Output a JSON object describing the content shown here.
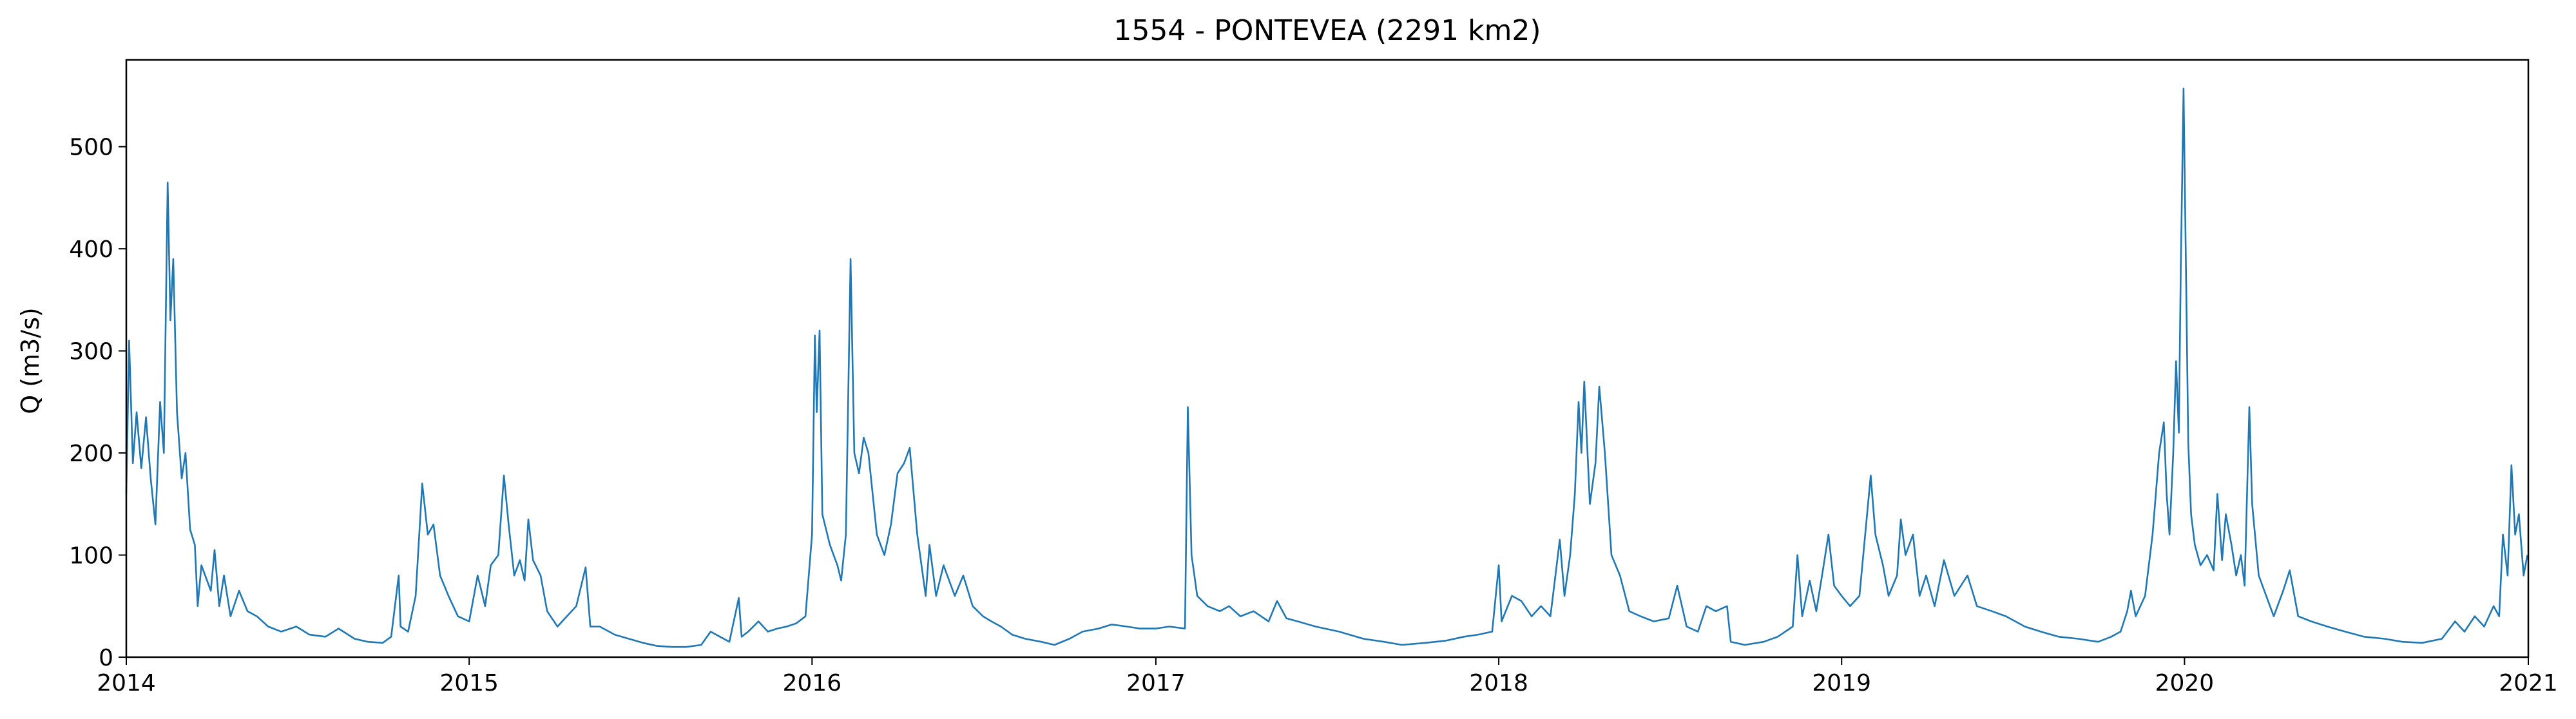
{
  "chart_data": {
    "type": "line",
    "title": "1554 - PONTEVEA (2291 km2)",
    "xlabel": "",
    "ylabel": "Q (m3/s)",
    "xlim": [
      "2014-01-01",
      "2021-01-01"
    ],
    "ylim": [
      0,
      585
    ],
    "grid": false,
    "legend": "none",
    "x_ticks": [
      {
        "label": "2014",
        "date": "2014-01-01"
      },
      {
        "label": "2015",
        "date": "2015-01-01"
      },
      {
        "label": "2016",
        "date": "2016-01-01"
      },
      {
        "label": "2017",
        "date": "2017-01-01"
      },
      {
        "label": "2018",
        "date": "2018-01-01"
      },
      {
        "label": "2019",
        "date": "2019-01-01"
      },
      {
        "label": "2020",
        "date": "2020-01-01"
      },
      {
        "label": "2021",
        "date": "2021-01-01"
      }
    ],
    "y_ticks": [
      {
        "label": "0",
        "value": 0
      },
      {
        "label": "100",
        "value": 100
      },
      {
        "label": "200",
        "value": 200
      },
      {
        "label": "300",
        "value": 300
      },
      {
        "label": "400",
        "value": 400
      },
      {
        "label": "500",
        "value": 500
      }
    ],
    "series": [
      {
        "name": "",
        "color": "#1f77b4",
        "points": [
          [
            "2014-01-01",
            160
          ],
          [
            "2014-01-04",
            310
          ],
          [
            "2014-01-08",
            190
          ],
          [
            "2014-01-12",
            240
          ],
          [
            "2014-01-17",
            185
          ],
          [
            "2014-01-22",
            235
          ],
          [
            "2014-01-27",
            175
          ],
          [
            "2014-02-01",
            130
          ],
          [
            "2014-02-06",
            250
          ],
          [
            "2014-02-10",
            200
          ],
          [
            "2014-02-14",
            465
          ],
          [
            "2014-02-17",
            330
          ],
          [
            "2014-02-20",
            390
          ],
          [
            "2014-02-24",
            240
          ],
          [
            "2014-03-01",
            175
          ],
          [
            "2014-03-05",
            200
          ],
          [
            "2014-03-10",
            125
          ],
          [
            "2014-03-15",
            110
          ],
          [
            "2014-03-18",
            50
          ],
          [
            "2014-03-22",
            90
          ],
          [
            "2014-04-01",
            65
          ],
          [
            "2014-04-05",
            105
          ],
          [
            "2014-04-10",
            50
          ],
          [
            "2014-04-15",
            80
          ],
          [
            "2014-04-22",
            40
          ],
          [
            "2014-05-01",
            65
          ],
          [
            "2014-05-10",
            45
          ],
          [
            "2014-05-20",
            40
          ],
          [
            "2014-06-01",
            30
          ],
          [
            "2014-06-15",
            25
          ],
          [
            "2014-07-01",
            30
          ],
          [
            "2014-07-15",
            22
          ],
          [
            "2014-08-01",
            20
          ],
          [
            "2014-08-15",
            28
          ],
          [
            "2014-09-01",
            18
          ],
          [
            "2014-09-15",
            15
          ],
          [
            "2014-10-01",
            14
          ],
          [
            "2014-10-10",
            20
          ],
          [
            "2014-10-18",
            80
          ],
          [
            "2014-10-20",
            30
          ],
          [
            "2014-10-28",
            25
          ],
          [
            "2014-11-05",
            60
          ],
          [
            "2014-11-12",
            170
          ],
          [
            "2014-11-18",
            120
          ],
          [
            "2014-11-24",
            130
          ],
          [
            "2014-12-01",
            80
          ],
          [
            "2014-12-10",
            60
          ],
          [
            "2014-12-20",
            40
          ],
          [
            "2015-01-01",
            35
          ],
          [
            "2015-01-10",
            80
          ],
          [
            "2015-01-18",
            50
          ],
          [
            "2015-01-24",
            90
          ],
          [
            "2015-02-01",
            100
          ],
          [
            "2015-02-07",
            178
          ],
          [
            "2015-02-12",
            130
          ],
          [
            "2015-02-18",
            80
          ],
          [
            "2015-02-24",
            95
          ],
          [
            "2015-03-01",
            75
          ],
          [
            "2015-03-05",
            135
          ],
          [
            "2015-03-10",
            95
          ],
          [
            "2015-03-18",
            80
          ],
          [
            "2015-03-25",
            45
          ],
          [
            "2015-04-05",
            30
          ],
          [
            "2015-04-15",
            40
          ],
          [
            "2015-04-25",
            50
          ],
          [
            "2015-05-05",
            88
          ],
          [
            "2015-05-10",
            30
          ],
          [
            "2015-05-20",
            30
          ],
          [
            "2015-06-05",
            22
          ],
          [
            "2015-06-20",
            18
          ],
          [
            "2015-07-05",
            14
          ],
          [
            "2015-07-20",
            11
          ],
          [
            "2015-08-05",
            10
          ],
          [
            "2015-08-20",
            10
          ],
          [
            "2015-09-05",
            12
          ],
          [
            "2015-09-15",
            25
          ],
          [
            "2015-09-25",
            20
          ],
          [
            "2015-10-05",
            15
          ],
          [
            "2015-10-15",
            58
          ],
          [
            "2015-10-18",
            20
          ],
          [
            "2015-10-25",
            25
          ],
          [
            "2015-11-05",
            35
          ],
          [
            "2015-11-15",
            25
          ],
          [
            "2015-11-25",
            28
          ],
          [
            "2015-12-05",
            30
          ],
          [
            "2015-12-15",
            33
          ],
          [
            "2015-12-25",
            40
          ],
          [
            "2016-01-01",
            120
          ],
          [
            "2016-01-04",
            315
          ],
          [
            "2016-01-06",
            240
          ],
          [
            "2016-01-09",
            320
          ],
          [
            "2016-01-12",
            140
          ],
          [
            "2016-01-20",
            110
          ],
          [
            "2016-01-28",
            90
          ],
          [
            "2016-02-01",
            75
          ],
          [
            "2016-02-06",
            120
          ],
          [
            "2016-02-11",
            390
          ],
          [
            "2016-02-15",
            200
          ],
          [
            "2016-02-20",
            180
          ],
          [
            "2016-02-25",
            215
          ],
          [
            "2016-03-01",
            200
          ],
          [
            "2016-03-10",
            120
          ],
          [
            "2016-03-18",
            100
          ],
          [
            "2016-03-25",
            130
          ],
          [
            "2016-04-01",
            180
          ],
          [
            "2016-04-08",
            190
          ],
          [
            "2016-04-14",
            205
          ],
          [
            "2016-04-22",
            120
          ],
          [
            "2016-05-01",
            60
          ],
          [
            "2016-05-05",
            110
          ],
          [
            "2016-05-12",
            60
          ],
          [
            "2016-05-20",
            90
          ],
          [
            "2016-06-01",
            60
          ],
          [
            "2016-06-10",
            80
          ],
          [
            "2016-06-20",
            50
          ],
          [
            "2016-07-01",
            40
          ],
          [
            "2016-07-10",
            35
          ],
          [
            "2016-07-20",
            30
          ],
          [
            "2016-08-01",
            22
          ],
          [
            "2016-08-15",
            18
          ],
          [
            "2016-09-01",
            15
          ],
          [
            "2016-09-15",
            12
          ],
          [
            "2016-10-01",
            18
          ],
          [
            "2016-10-15",
            25
          ],
          [
            "2016-11-01",
            28
          ],
          [
            "2016-11-15",
            32
          ],
          [
            "2016-12-01",
            30
          ],
          [
            "2016-12-15",
            28
          ],
          [
            "2017-01-01",
            28
          ],
          [
            "2017-01-15",
            30
          ],
          [
            "2017-02-01",
            28
          ],
          [
            "2017-02-04",
            245
          ],
          [
            "2017-02-08",
            100
          ],
          [
            "2017-02-14",
            60
          ],
          [
            "2017-02-25",
            50
          ],
          [
            "2017-03-10",
            45
          ],
          [
            "2017-03-20",
            50
          ],
          [
            "2017-04-01",
            40
          ],
          [
            "2017-04-15",
            45
          ],
          [
            "2017-05-01",
            35
          ],
          [
            "2017-05-10",
            55
          ],
          [
            "2017-05-20",
            38
          ],
          [
            "2017-06-01",
            35
          ],
          [
            "2017-06-20",
            30
          ],
          [
            "2017-07-15",
            25
          ],
          [
            "2017-08-10",
            18
          ],
          [
            "2017-09-01",
            15
          ],
          [
            "2017-09-20",
            12
          ],
          [
            "2017-10-15",
            14
          ],
          [
            "2017-11-05",
            16
          ],
          [
            "2017-11-25",
            20
          ],
          [
            "2017-12-10",
            22
          ],
          [
            "2017-12-25",
            25
          ],
          [
            "2018-01-01",
            90
          ],
          [
            "2018-01-04",
            35
          ],
          [
            "2018-01-15",
            60
          ],
          [
            "2018-01-25",
            55
          ],
          [
            "2018-02-05",
            40
          ],
          [
            "2018-02-15",
            50
          ],
          [
            "2018-02-25",
            40
          ],
          [
            "2018-03-01",
            70
          ],
          [
            "2018-03-07",
            115
          ],
          [
            "2018-03-12",
            60
          ],
          [
            "2018-03-18",
            100
          ],
          [
            "2018-03-23",
            160
          ],
          [
            "2018-03-27",
            250
          ],
          [
            "2018-03-30",
            200
          ],
          [
            "2018-04-02",
            270
          ],
          [
            "2018-04-08",
            150
          ],
          [
            "2018-04-14",
            190
          ],
          [
            "2018-04-18",
            265
          ],
          [
            "2018-04-24",
            200
          ],
          [
            "2018-05-01",
            100
          ],
          [
            "2018-05-10",
            80
          ],
          [
            "2018-05-20",
            45
          ],
          [
            "2018-06-01",
            40
          ],
          [
            "2018-06-15",
            35
          ],
          [
            "2018-07-01",
            38
          ],
          [
            "2018-07-10",
            70
          ],
          [
            "2018-07-20",
            30
          ],
          [
            "2018-08-01",
            25
          ],
          [
            "2018-08-10",
            50
          ],
          [
            "2018-08-20",
            45
          ],
          [
            "2018-09-01",
            50
          ],
          [
            "2018-09-05",
            15
          ],
          [
            "2018-09-20",
            12
          ],
          [
            "2018-10-10",
            15
          ],
          [
            "2018-10-25",
            20
          ],
          [
            "2018-11-10",
            30
          ],
          [
            "2018-11-15",
            100
          ],
          [
            "2018-11-20",
            40
          ],
          [
            "2018-11-28",
            75
          ],
          [
            "2018-12-05",
            45
          ],
          [
            "2018-12-12",
            85
          ],
          [
            "2018-12-18",
            120
          ],
          [
            "2018-12-24",
            70
          ],
          [
            "2019-01-01",
            60
          ],
          [
            "2019-01-10",
            50
          ],
          [
            "2019-01-20",
            60
          ],
          [
            "2019-02-01",
            178
          ],
          [
            "2019-02-06",
            120
          ],
          [
            "2019-02-14",
            90
          ],
          [
            "2019-02-20",
            60
          ],
          [
            "2019-03-01",
            80
          ],
          [
            "2019-03-05",
            135
          ],
          [
            "2019-03-10",
            100
          ],
          [
            "2019-03-18",
            120
          ],
          [
            "2019-03-25",
            60
          ],
          [
            "2019-04-01",
            80
          ],
          [
            "2019-04-10",
            50
          ],
          [
            "2019-04-20",
            95
          ],
          [
            "2019-05-01",
            60
          ],
          [
            "2019-05-15",
            80
          ],
          [
            "2019-05-25",
            50
          ],
          [
            "2019-06-10",
            45
          ],
          [
            "2019-06-25",
            40
          ],
          [
            "2019-07-15",
            30
          ],
          [
            "2019-08-01",
            25
          ],
          [
            "2019-08-20",
            20
          ],
          [
            "2019-09-10",
            18
          ],
          [
            "2019-10-01",
            15
          ],
          [
            "2019-10-15",
            20
          ],
          [
            "2019-10-25",
            25
          ],
          [
            "2019-11-01",
            45
          ],
          [
            "2019-11-05",
            65
          ],
          [
            "2019-11-10",
            40
          ],
          [
            "2019-11-20",
            60
          ],
          [
            "2019-11-28",
            120
          ],
          [
            "2019-12-05",
            200
          ],
          [
            "2019-12-10",
            230
          ],
          [
            "2019-12-13",
            160
          ],
          [
            "2019-12-16",
            120
          ],
          [
            "2019-12-20",
            200
          ],
          [
            "2019-12-23",
            290
          ],
          [
            "2019-12-26",
            220
          ],
          [
            "2019-12-28",
            380
          ],
          [
            "2019-12-31",
            557
          ],
          [
            "2020-01-03",
            350
          ],
          [
            "2020-01-05",
            210
          ],
          [
            "2020-01-08",
            140
          ],
          [
            "2020-01-12",
            110
          ],
          [
            "2020-01-18",
            90
          ],
          [
            "2020-01-25",
            100
          ],
          [
            "2020-02-01",
            85
          ],
          [
            "2020-02-05",
            160
          ],
          [
            "2020-02-10",
            95
          ],
          [
            "2020-02-14",
            140
          ],
          [
            "2020-02-20",
            110
          ],
          [
            "2020-02-25",
            80
          ],
          [
            "2020-03-01",
            100
          ],
          [
            "2020-03-05",
            70
          ],
          [
            "2020-03-10",
            245
          ],
          [
            "2020-03-13",
            150
          ],
          [
            "2020-03-20",
            80
          ],
          [
            "2020-03-28",
            60
          ],
          [
            "2020-04-05",
            40
          ],
          [
            "2020-04-15",
            65
          ],
          [
            "2020-04-22",
            85
          ],
          [
            "2020-05-01",
            40
          ],
          [
            "2020-05-15",
            35
          ],
          [
            "2020-06-01",
            30
          ],
          [
            "2020-06-20",
            25
          ],
          [
            "2020-07-10",
            20
          ],
          [
            "2020-08-01",
            18
          ],
          [
            "2020-08-20",
            15
          ],
          [
            "2020-09-10",
            14
          ],
          [
            "2020-10-01",
            18
          ],
          [
            "2020-10-15",
            35
          ],
          [
            "2020-10-25",
            25
          ],
          [
            "2020-11-05",
            40
          ],
          [
            "2020-11-15",
            30
          ],
          [
            "2020-11-25",
            50
          ],
          [
            "2020-12-01",
            40
          ],
          [
            "2020-12-05",
            120
          ],
          [
            "2020-12-10",
            80
          ],
          [
            "2020-12-14",
            188
          ],
          [
            "2020-12-18",
            120
          ],
          [
            "2020-12-22",
            140
          ],
          [
            "2020-12-27",
            80
          ],
          [
            "2020-12-31",
            100
          ]
        ]
      }
    ]
  }
}
